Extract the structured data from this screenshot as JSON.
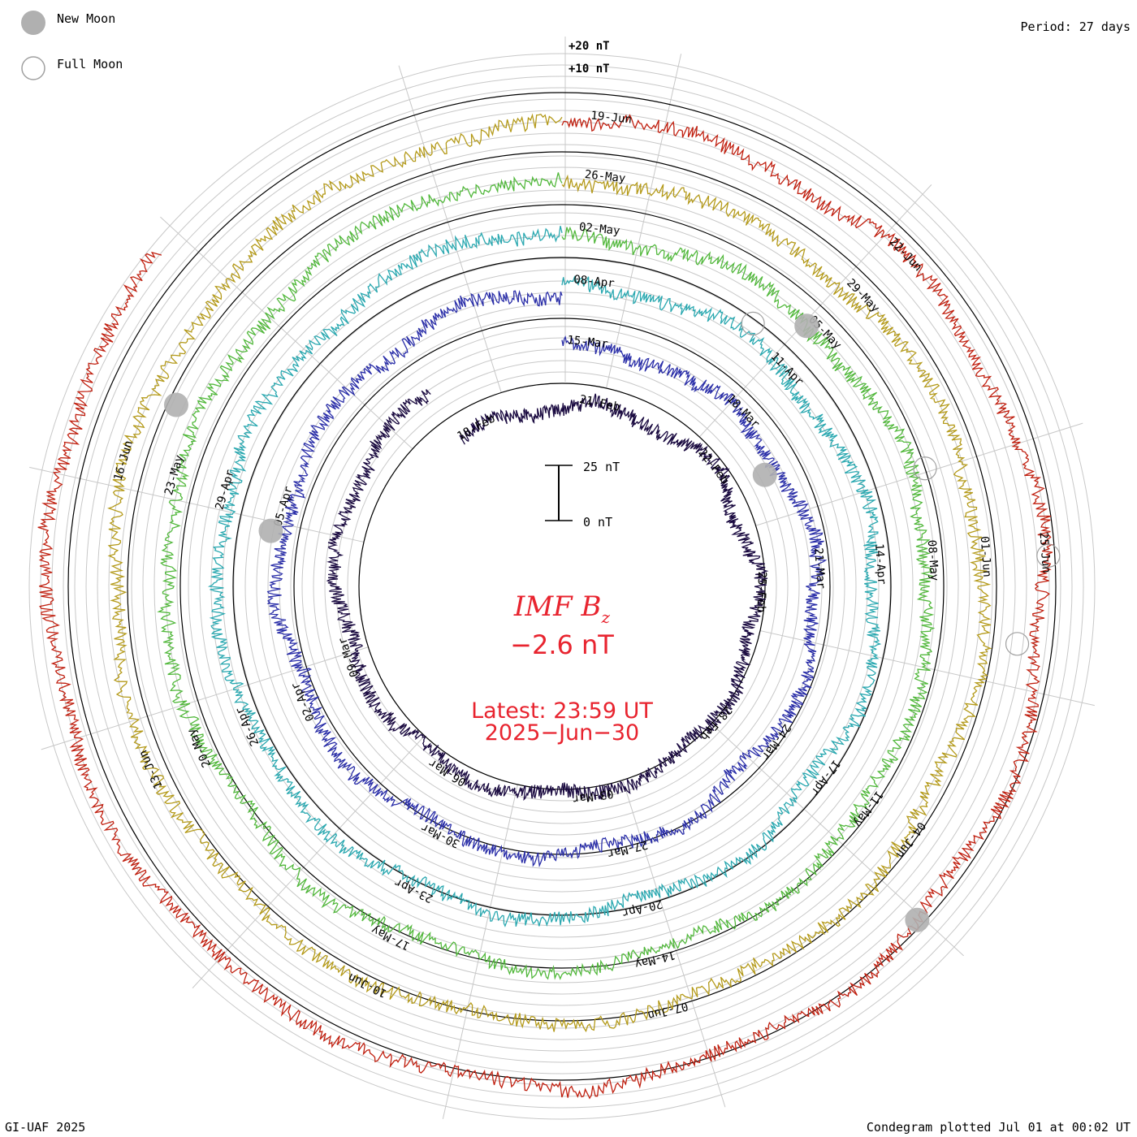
{
  "legend": {
    "new_moon": "New Moon",
    "full_moon": "Full Moon"
  },
  "header": {
    "period": "Period: 27 days"
  },
  "footer": {
    "credit": "GI-UAF 2025",
    "plotted": "Condegram plotted Jul 01 at 00:02 UT"
  },
  "scale": {
    "ring_20": "+20 nT",
    "ring_10": "+10 nT",
    "bar_top": "25 nT",
    "bar_bottom": "0 nT"
  },
  "center": {
    "title_main": "IMF B",
    "title_sub": "z",
    "value": "−2.6 nT",
    "latest_time": "Latest: 23:59 UT",
    "latest_date": "2025−Jun−30"
  },
  "chart_data": {
    "type": "line",
    "title": "IMF Bz",
    "period_days": 27,
    "units": "nT",
    "latest_value": -2.6,
    "series": [
      {
        "name": "rotation-1",
        "color": "#1a0a40",
        "date_labels": [
          "18-Feb",
          "21-Feb",
          "22-Feb",
          "25-Feb",
          "28-Feb",
          "03-Mar",
          "06-Mar",
          "09-Mar"
        ]
      },
      {
        "name": "rotation-2",
        "color": "#2a2ea8",
        "date_labels": [
          "15-Mar",
          "18-Mar",
          "21-Mar",
          "24-Mar",
          "27-Mar",
          "30-Mar",
          "02-Apr",
          "05-Apr"
        ]
      },
      {
        "name": "rotation-3",
        "color": "#2aa8b0",
        "date_labels": [
          "08-Apr",
          "11-Apr",
          "14-Apr",
          "17-Apr",
          "20-Apr",
          "23-Apr",
          "26-Apr",
          "29-Apr"
        ]
      },
      {
        "name": "rotation-4",
        "color": "#52b83c",
        "date_labels": [
          "02-May",
          "05-May",
          "08-May",
          "11-May",
          "14-May",
          "17-May",
          "20-May",
          "23-May"
        ]
      },
      {
        "name": "rotation-5",
        "color": "#b49a1a",
        "date_labels": [
          "26-May",
          "29-May",
          "01-Jun",
          "04-Jun",
          "07-Jun",
          "10-Jun",
          "13-Jun",
          "16-Jun"
        ]
      },
      {
        "name": "rotation-6",
        "color": "#c02010",
        "date_labels": [
          "19-Jun",
          "22-Jun",
          "25-Jun"
        ]
      }
    ],
    "moon_phase_markers": {
      "new_moon_dates": [
        "28-Feb",
        "29-Mar",
        "27-Apr",
        "27-May",
        "25-Jun"
      ],
      "full_moon_dates": [
        "14-Mar",
        "13-Apr",
        "12-May",
        "11-Jun"
      ]
    }
  }
}
